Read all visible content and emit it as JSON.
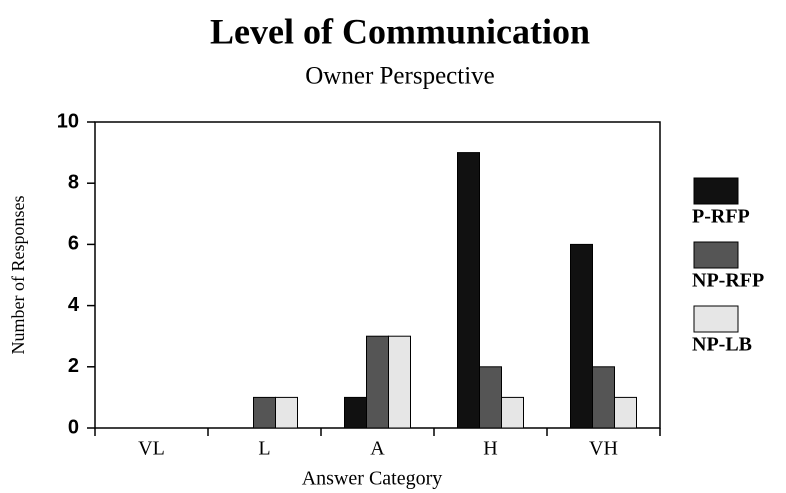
{
  "chart_data": {
    "type": "bar",
    "title": "Level of Communication",
    "subtitle": "Owner Perspective",
    "x_label": "Answer Category",
    "y_label": "Number of Responses",
    "categories": [
      "VL",
      "L",
      "A",
      "H",
      "VH"
    ],
    "series": [
      {
        "name": "P-RFP",
        "color": "#111111",
        "values": [
          0,
          0,
          1,
          9,
          6
        ]
      },
      {
        "name": "NP-RFP",
        "color": "#555555",
        "values": [
          0,
          1,
          3,
          2,
          2
        ]
      },
      {
        "name": "NP-LB",
        "color": "#e6e6e6",
        "values": [
          0,
          1,
          3,
          1,
          1
        ]
      }
    ],
    "ylim": [
      0,
      10
    ],
    "yticks": [
      0,
      2,
      4,
      6,
      8,
      10
    ],
    "legend": "right"
  }
}
